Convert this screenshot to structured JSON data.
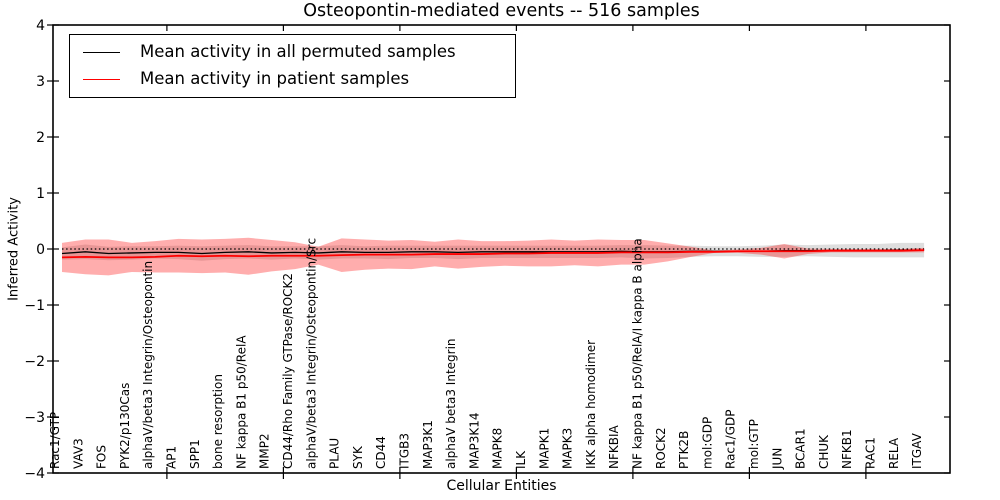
{
  "title": "Osteopontin-mediated events -- 516 samples",
  "legend": {
    "entries": [
      {
        "label": "Mean activity in all permuted samples",
        "color": "#000000"
      },
      {
        "label": "Mean activity in patient samples",
        "color": "#ff0000"
      }
    ]
  },
  "chart_data": {
    "type": "line",
    "title": "Osteopontin-mediated events -- 516 samples",
    "xlabel": "Cellular Entities",
    "ylabel": "Inferred Activity",
    "ylim": [
      -4,
      4
    ],
    "yticks": [
      4,
      3,
      2,
      1,
      0,
      -1,
      -2,
      -3,
      -4
    ],
    "ytick_labels": [
      "4",
      "3",
      "2",
      "1",
      "0",
      "−1",
      "−2",
      "−3",
      "−4"
    ],
    "grid": false,
    "legend_position": "upper left",
    "categories": [
      "Rac1/GTP",
      "VAV3",
      "FOS",
      "PYK2/p130Cas",
      "alphaV/beta3 Integrin/Osteopontin",
      "AP1",
      "SPP1",
      "bone resorption",
      "NF kappa B1 p50/RelA",
      "MMP2",
      "CD44/Rho Family GTPase/ROCK2",
      "alphaV/beta3 Integrin/Osteopontin/Src",
      "PLAU",
      "SYK",
      "CD44",
      "ITGB3",
      "MAP3K1",
      "alphaV beta3 Integrin",
      "MAP3K14",
      "MAPK8",
      "ILK",
      "MAPK1",
      "MAPK3",
      "IKK alpha homodimer",
      "NFKBIA",
      "NF kappa B1 p50/RelA/I kappa B alpha",
      "ROCK2",
      "PTK2B",
      "mol:GDP",
      "Rac1/GDP",
      "mol:GTP",
      "JUN",
      "BCAR1",
      "CHUK",
      "NFKB1",
      "RAC1",
      "RELA",
      "ITGAV"
    ],
    "series": [
      {
        "name": "Mean activity in all permuted samples",
        "color": "#000000",
        "line_style": "solid",
        "values": [
          -0.08,
          -0.05,
          -0.08,
          -0.07,
          -0.06,
          -0.06,
          -0.08,
          -0.06,
          -0.05,
          -0.07,
          -0.06,
          -0.07,
          -0.05,
          -0.06,
          -0.06,
          -0.05,
          -0.05,
          -0.06,
          -0.05,
          -0.05,
          -0.05,
          -0.05,
          -0.05,
          -0.05,
          -0.04,
          -0.05,
          -0.05,
          -0.04,
          -0.04,
          -0.04,
          -0.04,
          -0.03,
          -0.03,
          -0.03,
          -0.03,
          -0.03,
          -0.02,
          -0.02
        ]
      },
      {
        "name": "Mean activity in patient samples",
        "color": "#ff0000",
        "line_style": "solid",
        "values": [
          -0.15,
          -0.14,
          -0.15,
          -0.15,
          -0.14,
          -0.12,
          -0.13,
          -0.12,
          -0.13,
          -0.12,
          -0.12,
          -0.12,
          -0.11,
          -0.1,
          -0.1,
          -0.1,
          -0.09,
          -0.09,
          -0.09,
          -0.08,
          -0.08,
          -0.07,
          -0.07,
          -0.07,
          -0.06,
          -0.06,
          -0.06,
          -0.05,
          -0.05,
          -0.04,
          -0.04,
          -0.04,
          -0.04,
          -0.03,
          -0.03,
          -0.03,
          -0.03,
          -0.02
        ]
      },
      {
        "name": "Zero reference",
        "color": "#000000",
        "line_style": "dotted",
        "constant": 0
      }
    ],
    "bands": [
      {
        "name": "Permuted samples std band",
        "color": "#000000",
        "opacity": 0.13,
        "center_series": 0,
        "half_widths": [
          0.11,
          0.13,
          0.12,
          0.12,
          0.11,
          0.12,
          0.13,
          0.12,
          0.12,
          0.12,
          0.11,
          0.12,
          0.12,
          0.11,
          0.12,
          0.11,
          0.11,
          0.12,
          0.11,
          0.11,
          0.11,
          0.11,
          0.11,
          0.11,
          0.11,
          0.12,
          0.11,
          0.1,
          0.09,
          0.09,
          0.1,
          0.11,
          0.1,
          0.11,
          0.12,
          0.12,
          0.13,
          0.13
        ]
      },
      {
        "name": "Patient samples std band",
        "color": "#ff0000",
        "opacity": 0.32,
        "center_series": 1,
        "half_widths": [
          0.26,
          0.31,
          0.32,
          0.26,
          0.28,
          0.3,
          0.3,
          0.3,
          0.33,
          0.28,
          0.24,
          0.16,
          0.3,
          0.27,
          0.25,
          0.26,
          0.22,
          0.26,
          0.23,
          0.22,
          0.23,
          0.24,
          0.22,
          0.24,
          0.22,
          0.22,
          0.16,
          0.09,
          0.02,
          0.03,
          0.06,
          0.13,
          0.05,
          0.03,
          0.03,
          0.03,
          0.03,
          0.04
        ]
      }
    ]
  }
}
